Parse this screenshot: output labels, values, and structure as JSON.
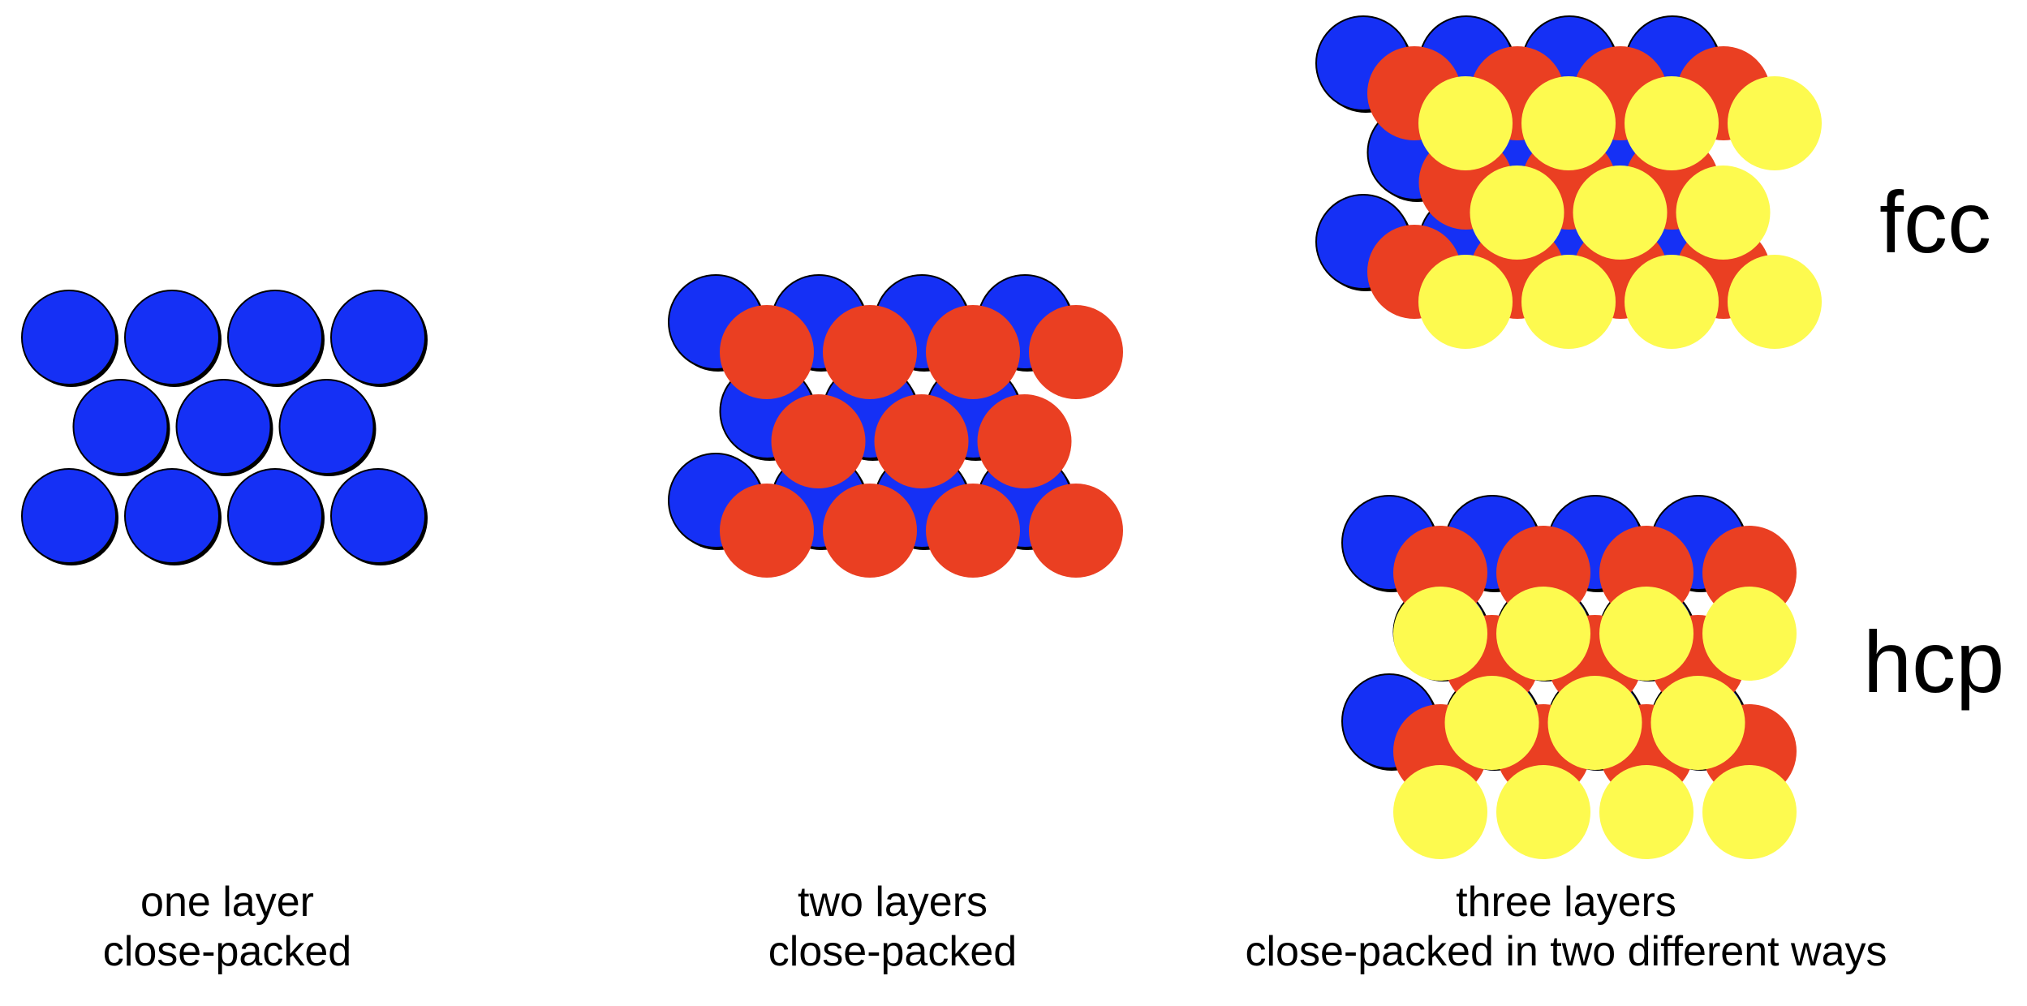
{
  "colors": {
    "layer_a": "#1530f5",
    "layer_b": "#ea3f22",
    "layer_c": "#fdfa4f",
    "outline": "#000000"
  },
  "panels": {
    "one_layer": {
      "caption_line1": "one layer",
      "caption_line2": "close-packed"
    },
    "two_layers": {
      "caption_line1": "two layers",
      "caption_line2": "close-packed"
    },
    "three_layers": {
      "caption_line1": "three layers",
      "caption_line2": "close-packed in two different ways"
    }
  },
  "structures": {
    "fcc_label": "fcc",
    "hcp_label": "hcp"
  }
}
